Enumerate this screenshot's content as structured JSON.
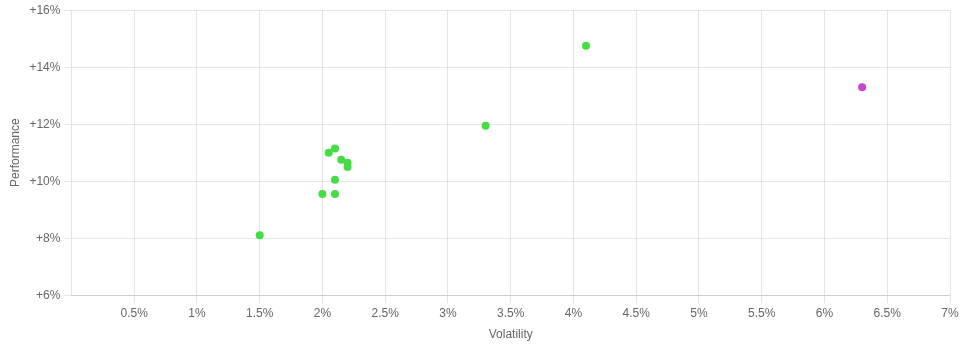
{
  "chart_data": {
    "type": "scatter",
    "xlabel": "Volatility",
    "ylabel": "Performance",
    "series": [
      {
        "color": "#44dd44",
        "x": [
          1.5,
          2.0,
          2.05,
          2.1,
          2.15,
          2.2,
          2.2,
          2.1,
          2.1,
          3.3,
          4.1
        ],
        "values": [
          8.1,
          9.55,
          11.0,
          11.15,
          10.75,
          10.65,
          10.5,
          10.05,
          9.55,
          11.95,
          14.75
        ]
      },
      {
        "color": "#cc44cc",
        "x": [
          6.3
        ],
        "values": [
          13.3
        ]
      }
    ],
    "xlim": [
      0.0,
      7.0
    ],
    "ylim": [
      6.0,
      16.0
    ],
    "xticks": [
      {
        "value": 0.5,
        "label": "0.5%"
      },
      {
        "value": 1.0,
        "label": "1%"
      },
      {
        "value": 1.5,
        "label": "1.5%"
      },
      {
        "value": 2.0,
        "label": "2%"
      },
      {
        "value": 2.5,
        "label": "2.5%"
      },
      {
        "value": 3.0,
        "label": "3%"
      },
      {
        "value": 3.5,
        "label": "3.5%"
      },
      {
        "value": 4.0,
        "label": "4%"
      },
      {
        "value": 4.5,
        "label": "4.5%"
      },
      {
        "value": 5.0,
        "label": "5%"
      },
      {
        "value": 5.5,
        "label": "5.5%"
      },
      {
        "value": 6.0,
        "label": "6%"
      },
      {
        "value": 6.5,
        "label": "6.5%"
      },
      {
        "value": 7.0,
        "label": "7%"
      }
    ],
    "yticks": [
      {
        "value": 6,
        "label": "+6%"
      },
      {
        "value": 8,
        "label": "+8%"
      },
      {
        "value": 10,
        "label": "+10%"
      },
      {
        "value": 12,
        "label": "+12%"
      },
      {
        "value": 14,
        "label": "+14%"
      },
      {
        "value": 16,
        "label": "+16%"
      }
    ],
    "grid": true
  }
}
